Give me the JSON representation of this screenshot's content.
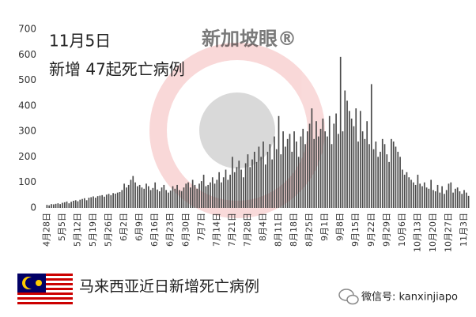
{
  "chart_data": {
    "type": "bar",
    "title": "11月5日",
    "subtitle": "新增 47起死亡病例",
    "caption": "马来西亚近日新增死亡病例",
    "watermark": "新加坡眼®",
    "wechat": "微信号: kanxinjiapo",
    "color": "#4a4a4a",
    "ylim": [
      0,
      700
    ],
    "yticks": [
      0,
      100,
      200,
      300,
      400,
      500,
      600,
      700
    ],
    "categories": [
      "4月28日",
      null,
      null,
      null,
      null,
      null,
      null,
      "5月5日",
      null,
      null,
      null,
      null,
      null,
      null,
      "5月12日",
      null,
      null,
      null,
      null,
      null,
      null,
      "5月19日",
      null,
      null,
      null,
      null,
      null,
      null,
      "5月26日",
      null,
      null,
      null,
      null,
      null,
      null,
      "6月2日",
      null,
      null,
      null,
      null,
      null,
      null,
      "6月9日",
      null,
      null,
      null,
      null,
      null,
      null,
      "6月16日",
      null,
      null,
      null,
      null,
      null,
      null,
      "6月23日",
      null,
      null,
      null,
      null,
      null,
      null,
      "6月30日",
      null,
      null,
      null,
      null,
      null,
      null,
      "7月7日",
      null,
      null,
      null,
      null,
      null,
      null,
      "7月14日",
      null,
      null,
      null,
      null,
      null,
      null,
      "7月21日",
      null,
      null,
      null,
      null,
      null,
      null,
      "7月28日",
      null,
      null,
      null,
      null,
      null,
      null,
      "8月4日",
      null,
      null,
      null,
      null,
      null,
      null,
      "8月11日",
      null,
      null,
      null,
      null,
      null,
      null,
      "8月18日",
      null,
      null,
      null,
      null,
      null,
      null,
      "8月25日",
      null,
      null,
      null,
      null,
      null,
      null,
      "9月1日",
      null,
      null,
      null,
      null,
      null,
      null,
      "9月8日",
      null,
      null,
      null,
      null,
      null,
      null,
      "9月15日",
      null,
      null,
      null,
      null,
      null,
      null,
      "9月22日",
      null,
      null,
      null,
      null,
      null,
      null,
      "9月29日",
      null,
      null,
      null,
      null,
      null,
      null,
      "10月6日",
      null,
      null,
      null,
      null,
      null,
      null,
      "10月13日",
      null,
      null,
      null,
      null,
      null,
      null,
      "10月20日",
      null,
      null,
      null,
      null,
      null,
      null,
      "10月27日",
      null,
      null,
      null,
      null,
      null,
      null,
      "11月3日",
      null,
      null
    ],
    "values": [
      12,
      10,
      15,
      14,
      16,
      18,
      15,
      20,
      22,
      25,
      18,
      24,
      28,
      30,
      26,
      32,
      35,
      38,
      30,
      40,
      42,
      45,
      40,
      46,
      48,
      50,
      44,
      52,
      55,
      50,
      58,
      56,
      60,
      62,
      70,
      95,
      80,
      90,
      110,
      125,
      100,
      85,
      90,
      80,
      75,
      95,
      85,
      70,
      78,
      100,
      72,
      65,
      80,
      90,
      70,
      60,
      68,
      85,
      75,
      90,
      70,
      66,
      80,
      95,
      100,
      80,
      110,
      90,
      75,
      95,
      105,
      130,
      85,
      90,
      100,
      120,
      95,
      110,
      140,
      100,
      120,
      150,
      110,
      130,
      200,
      140,
      160,
      185,
      150,
      120,
      175,
      210,
      160,
      190,
      220,
      180,
      240,
      200,
      260,
      170,
      220,
      250,
      190,
      280,
      230,
      360,
      210,
      300,
      240,
      270,
      290,
      220,
      300,
      260,
      200,
      280,
      310,
      250,
      300,
      330,
      390,
      270,
      340,
      280,
      310,
      350,
      300,
      280,
      360,
      250,
      330,
      370,
      290,
      592,
      300,
      460,
      420,
      380,
      350,
      320,
      390,
      260,
      380,
      300,
      270,
      340,
      250,
      485,
      230,
      260,
      200,
      220,
      270,
      250,
      210,
      180,
      270,
      260,
      240,
      220,
      200,
      150,
      130,
      140,
      120,
      110,
      100,
      90,
      130,
      95,
      85,
      100,
      80,
      75,
      110,
      70,
      65,
      90,
      60,
      85,
      55,
      70,
      95,
      100,
      60,
      75,
      80,
      65,
      55,
      70,
      60,
      47
    ]
  }
}
